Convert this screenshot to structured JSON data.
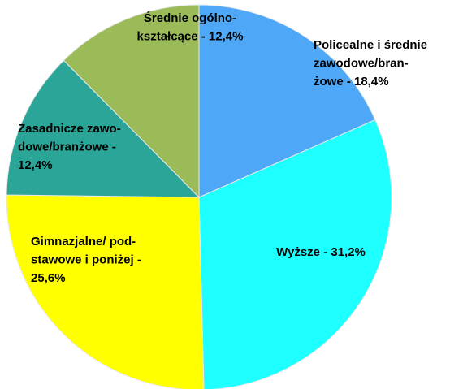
{
  "chart_data": {
    "type": "pie",
    "values": [
      18.4,
      31.2,
      25.6,
      12.4,
      12.4
    ],
    "value_labels": [
      [
        "Policealne i średnie",
        "zawodowe/bran-",
        "żowe - 18,4%"
      ],
      [
        "Wyższe - 31,2%"
      ],
      [
        "Gimnazjalne/ pod-",
        "stawowe i poniżej -",
        "25,6%"
      ],
      [
        "Zasadnicze zawo-",
        "dowe/branżowe -",
        "12,4%"
      ],
      [
        "Średnie ogólno-",
        "kształcące - 12,4%"
      ]
    ],
    "colors": [
      "#4fa7f7",
      "#1effff",
      "#ffff00",
      "#2aa597",
      "#9bbb59"
    ]
  }
}
